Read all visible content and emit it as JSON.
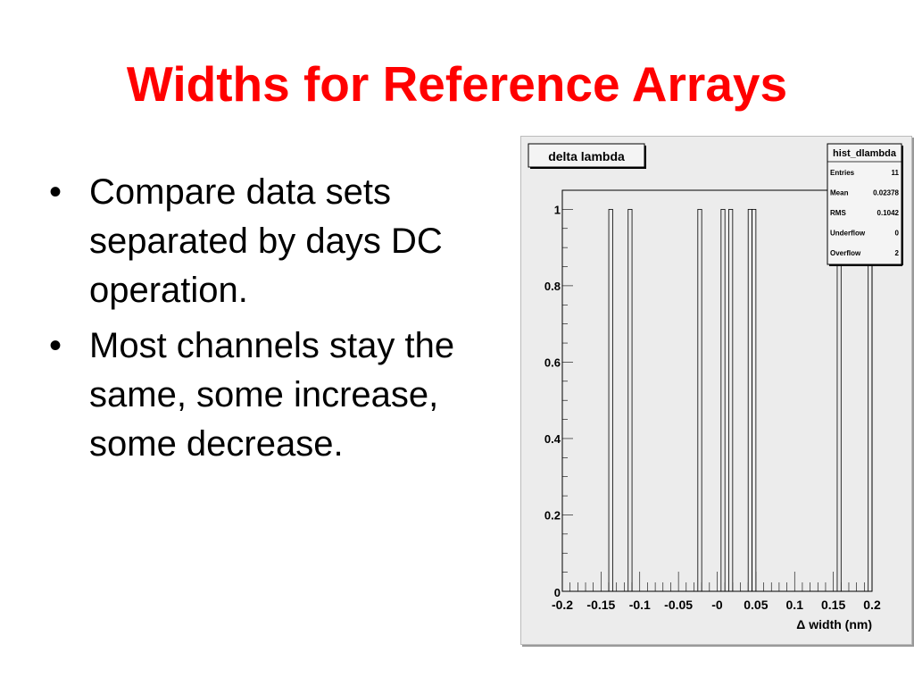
{
  "slide": {
    "title": "Widths for Reference Arrays",
    "bullets": [
      "Compare data sets separated by  days DC operation.",
      "Most channels stay the same, some increase, some decrease."
    ],
    "bullet_glyph": "•",
    "title_color": "#ff0000"
  },
  "chart_data": {
    "type": "bar",
    "title": "delta lambda",
    "xlabel": "Δ width (nm)",
    "ylabel": "",
    "xlim": [
      -0.2,
      0.2
    ],
    "ylim": [
      0,
      1.05
    ],
    "bin_width": 0.005,
    "x_tick_labels": [
      "-0.2",
      "-0.15",
      "-0.1",
      "-0.05",
      "-0",
      "0.05",
      "0.1",
      "0.15",
      "0.2"
    ],
    "x_ticks": [
      -0.2,
      -0.15,
      -0.1,
      -0.05,
      0,
      0.05,
      0.1,
      0.15,
      0.2
    ],
    "y_tick_labels": [
      "0",
      "0.2",
      "0.4",
      "0.6",
      "0.8",
      "1"
    ],
    "y_ticks": [
      0,
      0.2,
      0.4,
      0.6,
      0.8,
      1
    ],
    "bins": [
      {
        "x": -0.14,
        "count": 1
      },
      {
        "x": -0.115,
        "count": 1
      },
      {
        "x": -0.025,
        "count": 1
      },
      {
        "x": 0.005,
        "count": 1
      },
      {
        "x": 0.015,
        "count": 1
      },
      {
        "x": 0.04,
        "count": 1
      },
      {
        "x": 0.045,
        "count": 1
      },
      {
        "x": 0.155,
        "count": 1
      },
      {
        "x": 0.195,
        "count": 1
      }
    ],
    "grid": false,
    "stats": {
      "name": "hist_dlambda",
      "rows": [
        {
          "label": "Entries",
          "value": "11"
        },
        {
          "label": "Mean",
          "value": "0.02378"
        },
        {
          "label": "RMS",
          "value": "0.1042"
        },
        {
          "label": "Underflow",
          "value": "0"
        },
        {
          "label": "Overflow",
          "value": "2"
        }
      ]
    }
  }
}
